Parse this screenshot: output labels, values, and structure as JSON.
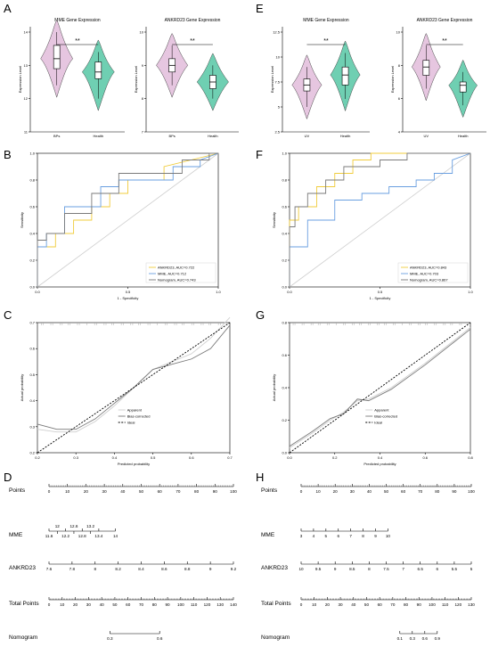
{
  "colors": {
    "pink": "#e6c6e0",
    "green": "#6fcfb2",
    "blue": "#6a9fe0",
    "yellow": "#f0cc3c",
    "gray": "#7a7a7a",
    "ref": "#cfcfcf"
  },
  "panels": {
    "A": "A",
    "B": "B",
    "C": "C",
    "D": "D",
    "E": "E",
    "F": "F",
    "G": "G",
    "H": "H"
  },
  "chart_data": [
    {
      "type": "violin",
      "id": "A1",
      "title": "MME Gene Expression",
      "ylabel": "Expression Level",
      "categories": [
        "BPs",
        "Health"
      ],
      "ylim": [
        11,
        14
      ],
      "yticks": [
        11,
        12,
        13,
        14
      ],
      "boxes": [
        {
          "q1": 12.9,
          "median": 13.2,
          "q3": 13.6,
          "min": 12.4,
          "max": 14.0
        },
        {
          "q1": 12.6,
          "median": 12.8,
          "q3": 13.1,
          "min": 12.0,
          "max": 13.4
        }
      ],
      "significance": "**"
    },
    {
      "type": "violin",
      "id": "A2",
      "title": "ANKRD23 Gene Expression",
      "ylabel": "Expression Level",
      "categories": [
        "BPs",
        "Health"
      ],
      "ylim": [
        7,
        10
      ],
      "yticks": [
        7,
        8,
        9,
        10
      ],
      "boxes": [
        {
          "q1": 8.8,
          "median": 9.0,
          "q3": 9.2,
          "min": 8.4,
          "max": 9.6
        },
        {
          "q1": 8.3,
          "median": 8.5,
          "q3": 8.7,
          "min": 8.0,
          "max": 9.0
        }
      ],
      "significance": "**"
    },
    {
      "type": "violin",
      "id": "E1",
      "title": "MME Gene Expression",
      "ylabel": "Expression Level",
      "categories": [
        "UV",
        "Health"
      ],
      "ylim": [
        2.5,
        12.5
      ],
      "yticks": [
        2.5,
        5.0,
        7.5,
        10.0,
        12.5
      ],
      "boxes": [
        {
          "q1": 6.6,
          "median": 7.2,
          "q3": 7.8,
          "min": 5.0,
          "max": 9.0
        },
        {
          "q1": 7.2,
          "median": 8.2,
          "q3": 9.0,
          "min": 5.8,
          "max": 10.4
        }
      ],
      "significance": "**"
    },
    {
      "type": "violin",
      "id": "E2",
      "title": "ANKRD23 Gene Expression",
      "ylabel": "Expression Level",
      "categories": [
        "UV",
        "Health"
      ],
      "ylim": [
        4,
        10
      ],
      "yticks": [
        4,
        6,
        8,
        10
      ],
      "boxes": [
        {
          "q1": 7.4,
          "median": 7.9,
          "q3": 8.3,
          "min": 6.6,
          "max": 9.2
        },
        {
          "q1": 6.4,
          "median": 6.8,
          "q3": 7.0,
          "min": 5.6,
          "max": 7.6
        }
      ],
      "significance": "**"
    },
    {
      "type": "line",
      "id": "B",
      "subtype": "roc",
      "xlabel": "1 - Specificity",
      "ylabel": "Sensitivity",
      "xlim": [
        0,
        1
      ],
      "ylim": [
        0,
        1
      ],
      "xticks": [
        "0.0",
        "0.5",
        "1.0"
      ],
      "yticks": [
        "0.0",
        "0.2",
        "0.4",
        "0.6",
        "0.8",
        "1.0"
      ],
      "series": [
        {
          "name": "ANKRD23, AUC=0.722",
          "color": "yellow",
          "x": [
            0,
            0,
            0.1,
            0.1,
            0.2,
            0.2,
            0.3,
            0.3,
            0.4,
            0.4,
            0.5,
            0.5,
            0.7,
            0.7,
            1
          ],
          "y": [
            0,
            0.3,
            0.3,
            0.4,
            0.4,
            0.5,
            0.5,
            0.6,
            0.6,
            0.7,
            0.7,
            0.8,
            0.8,
            0.9,
            1
          ]
        },
        {
          "name": "MME, AUC=0.712",
          "color": "blue",
          "x": [
            0,
            0,
            0.05,
            0.05,
            0.15,
            0.15,
            0.35,
            0.35,
            0.45,
            0.45,
            0.75,
            0.75,
            0.9,
            0.9,
            1
          ],
          "y": [
            0,
            0.3,
            0.3,
            0.4,
            0.4,
            0.6,
            0.6,
            0.75,
            0.75,
            0.8,
            0.8,
            0.9,
            0.9,
            0.95,
            1
          ]
        },
        {
          "name": "Nomogram, AUC=0.743",
          "color": "gray",
          "x": [
            0,
            0,
            0.05,
            0.05,
            0.15,
            0.15,
            0.3,
            0.3,
            0.45,
            0.45,
            0.6,
            0.6,
            0.8,
            0.8,
            0.95,
            0.95,
            1
          ],
          "y": [
            0,
            0.35,
            0.35,
            0.4,
            0.4,
            0.55,
            0.55,
            0.7,
            0.7,
            0.85,
            0.85,
            0.85,
            0.85,
            0.95,
            0.95,
            1,
            1
          ]
        }
      ]
    },
    {
      "type": "line",
      "id": "F",
      "subtype": "roc",
      "xlabel": "1 - Specificity",
      "ylabel": "Sensitivity",
      "xlim": [
        0,
        1
      ],
      "ylim": [
        0,
        1
      ],
      "xticks": [
        "0.0",
        "0.5",
        "1.0"
      ],
      "yticks": [
        "0.0",
        "0.2",
        "0.4",
        "0.6",
        "0.8",
        "1.0"
      ],
      "series": [
        {
          "name": "ANKRD23, AUC=0.843",
          "color": "yellow",
          "x": [
            0,
            0,
            0.05,
            0.05,
            0.15,
            0.15,
            0.25,
            0.25,
            0.35,
            0.35,
            0.45,
            0.45,
            1
          ],
          "y": [
            0,
            0.5,
            0.5,
            0.6,
            0.6,
            0.75,
            0.75,
            0.85,
            0.85,
            0.95,
            0.95,
            1,
            1
          ]
        },
        {
          "name": "MME, AUC=0.703",
          "color": "blue",
          "x": [
            0,
            0,
            0.1,
            0.1,
            0.25,
            0.25,
            0.4,
            0.4,
            0.55,
            0.55,
            0.7,
            0.7,
            0.8,
            0.8,
            0.9,
            0.9,
            1
          ],
          "y": [
            0,
            0.3,
            0.3,
            0.5,
            0.5,
            0.65,
            0.65,
            0.7,
            0.7,
            0.75,
            0.75,
            0.8,
            0.8,
            0.85,
            0.85,
            0.95,
            1
          ]
        },
        {
          "name": "Nomogram, AUC=0.867",
          "color": "gray",
          "x": [
            0,
            0,
            0.03,
            0.03,
            0.1,
            0.1,
            0.2,
            0.2,
            0.3,
            0.3,
            0.5,
            0.5,
            0.65,
            0.65,
            1
          ],
          "y": [
            0,
            0.45,
            0.45,
            0.6,
            0.6,
            0.7,
            0.7,
            0.8,
            0.8,
            0.9,
            0.9,
            0.95,
            0.95,
            1,
            1
          ]
        }
      ]
    },
    {
      "type": "line",
      "id": "C",
      "subtype": "calibration",
      "xlabel": "Predicted probability",
      "ylabel": "Actual probability",
      "xlim": [
        0.2,
        0.7
      ],
      "ylim": [
        0.2,
        0.7
      ],
      "xticks": [
        "0.2",
        "0.3",
        "0.4",
        "0.5",
        "0.6",
        "0.7"
      ],
      "yticks": [
        "0.2",
        "0.3",
        "0.4",
        "0.5",
        "0.6",
        "0.7"
      ],
      "series": [
        {
          "name": "Apparent",
          "color": "ref",
          "x": [
            0.2,
            0.25,
            0.3,
            0.35,
            0.4,
            0.45,
            0.5,
            0.55,
            0.6,
            0.65,
            0.7
          ],
          "y": [
            0.29,
            0.28,
            0.28,
            0.32,
            0.38,
            0.45,
            0.52,
            0.55,
            0.58,
            0.64,
            0.72
          ]
        },
        {
          "name": "Bias-corrected",
          "color": "gray",
          "x": [
            0.2,
            0.25,
            0.3,
            0.35,
            0.4,
            0.45,
            0.5,
            0.55,
            0.6,
            0.65,
            0.7
          ],
          "y": [
            0.31,
            0.29,
            0.29,
            0.33,
            0.39,
            0.45,
            0.52,
            0.54,
            0.56,
            0.6,
            0.69
          ]
        },
        {
          "name": "Ideal",
          "color": "dash",
          "x": [
            0.2,
            0.7
          ],
          "y": [
            0.2,
            0.7
          ]
        }
      ]
    },
    {
      "type": "line",
      "id": "G",
      "subtype": "calibration",
      "xlabel": "Predicted probability",
      "ylabel": "Actual probability",
      "xlim": [
        0,
        0.8
      ],
      "ylim": [
        0,
        0.8
      ],
      "xticks": [
        "0.0",
        "0.2",
        "0.4",
        "0.6",
        "0.8"
      ],
      "yticks": [
        "0.0",
        "0.2",
        "0.4",
        "0.6",
        "0.8"
      ],
      "series": [
        {
          "name": "Apparent",
          "color": "ref",
          "x": [
            0,
            0.1,
            0.18,
            0.24,
            0.3,
            0.35,
            0.45,
            0.6,
            0.8
          ],
          "y": [
            0.03,
            0.12,
            0.2,
            0.25,
            0.32,
            0.33,
            0.4,
            0.55,
            0.77
          ]
        },
        {
          "name": "Bias-corrected",
          "color": "gray",
          "x": [
            0,
            0.1,
            0.18,
            0.24,
            0.3,
            0.35,
            0.45,
            0.6,
            0.8
          ],
          "y": [
            0.04,
            0.13,
            0.21,
            0.24,
            0.33,
            0.32,
            0.39,
            0.54,
            0.76
          ]
        },
        {
          "name": "Ideal",
          "color": "dash",
          "x": [
            0,
            0.8
          ],
          "y": [
            0,
            0.8
          ]
        }
      ]
    },
    {
      "type": "nomogram",
      "id": "D",
      "rows": [
        {
          "label": "Points",
          "ticks": [
            "0",
            "10",
            "20",
            "30",
            "40",
            "50",
            "60",
            "70",
            "80",
            "90",
            "100"
          ],
          "start": 0,
          "end": 1
        },
        {
          "label": "MME",
          "ticks": [
            "11.6",
            "12.2",
            "12.8",
            "13.4",
            "14"
          ],
          "minor": [
            "12",
            "12.6",
            "13.2"
          ],
          "start": 0,
          "end": 0.36
        },
        {
          "label": "ANKRD23",
          "ticks": [
            "7.6",
            "7.8",
            "8",
            "8.2",
            "8.4",
            "8.6",
            "8.8",
            "9",
            "9.2"
          ],
          "start": 0,
          "end": 1
        },
        {
          "label": "Total Points",
          "ticks": [
            "0",
            "10",
            "20",
            "30",
            "40",
            "50",
            "60",
            "70",
            "80",
            "90",
            "100",
            "110",
            "120",
            "130",
            "140"
          ],
          "start": 0,
          "end": 1
        },
        {
          "label": "Nomogram",
          "ticks": [
            "0.3",
            "0.6"
          ],
          "start": 0.33,
          "end": 0.6
        }
      ]
    },
    {
      "type": "nomogram",
      "id": "H",
      "rows": [
        {
          "label": "Points",
          "ticks": [
            "0",
            "10",
            "20",
            "30",
            "40",
            "50",
            "60",
            "70",
            "80",
            "90",
            "100"
          ],
          "start": 0,
          "end": 1
        },
        {
          "label": "MME",
          "ticks": [
            "3",
            "4",
            "5",
            "6",
            "7",
            "8",
            "9",
            "10"
          ],
          "start": 0,
          "end": 0.51
        },
        {
          "label": "ANKRD23",
          "ticks": [
            "10",
            "9.5",
            "9",
            "8.5",
            "8",
            "7.5",
            "7",
            "6.5",
            "6",
            "5.5",
            "5"
          ],
          "start": 0,
          "end": 1
        },
        {
          "label": "Total Points",
          "ticks": [
            "0",
            "10",
            "20",
            "30",
            "40",
            "50",
            "60",
            "70",
            "80",
            "90",
            "100",
            "110",
            "120",
            "130"
          ],
          "start": 0,
          "end": 1
        },
        {
          "label": "Nomogram",
          "ticks": [
            "0.1",
            "0.3",
            "0.6",
            "0.9"
          ],
          "start": 0.58,
          "end": 0.8
        }
      ]
    }
  ]
}
